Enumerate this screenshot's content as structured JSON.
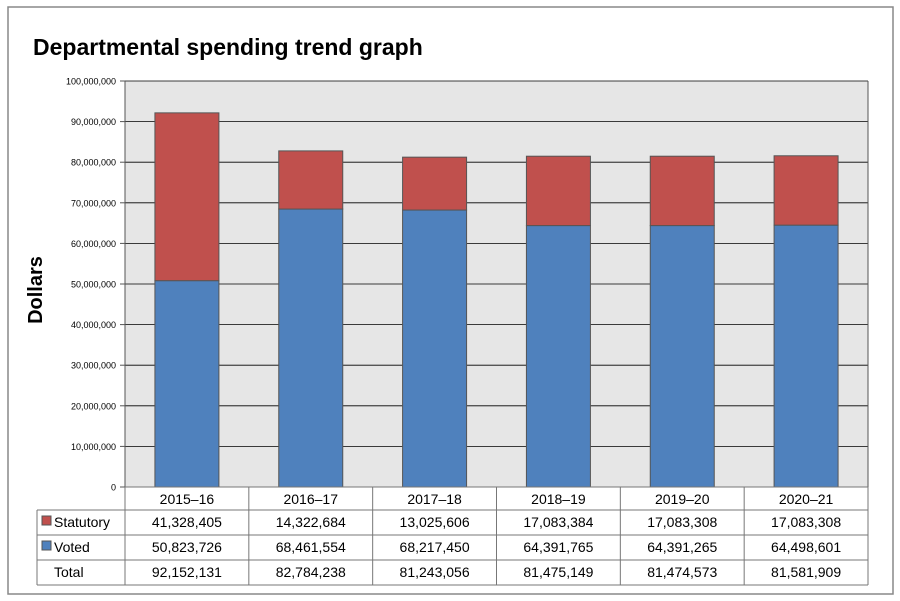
{
  "chart_data": {
    "type": "bar",
    "stacked": true,
    "title": "Departmental spending trend graph",
    "xlabel": "",
    "ylabel": "Dollars",
    "ylim": [
      0,
      100000000
    ],
    "yticks": [
      "0",
      "10,000,000",
      "20,000,000",
      "30,000,000",
      "40,000,000",
      "50,000,000",
      "60,000,000",
      "70,000,000",
      "80,000,000",
      "90,000,000",
      "100,000,000"
    ],
    "grid": true,
    "legend": "data-table-left",
    "categories": [
      "2015–16",
      "2016–17",
      "2017–18",
      "2018–19",
      "2019–20",
      "2020–21"
    ],
    "series": [
      {
        "name": "Voted",
        "color": "#4f81bd",
        "values": [
          50823726,
          68461554,
          68217450,
          64391765,
          64391265,
          64498601
        ],
        "labels": [
          "50,823,726",
          "68,461,554",
          "68,217,450",
          "64,391,765",
          "64,391,265",
          "64,498,601"
        ]
      },
      {
        "name": "Statutory",
        "color": "#c0504d",
        "values": [
          41328405,
          14322684,
          13025606,
          17083384,
          17083308,
          17083308
        ],
        "labels": [
          "41,328,405",
          "14,322,684",
          "13,025,606",
          "17,083,384",
          "17,083,308",
          "17,083,308"
        ]
      }
    ],
    "total": {
      "name": "Total",
      "values": [
        92152131,
        82784238,
        81243056,
        81475149,
        81474573,
        81581909
      ],
      "labels": [
        "92,152,131",
        "82,784,238",
        "81,243,056",
        "81,475,149",
        "81,474,573",
        "81,581,909"
      ]
    },
    "plot_background": "#e6e6e6"
  }
}
